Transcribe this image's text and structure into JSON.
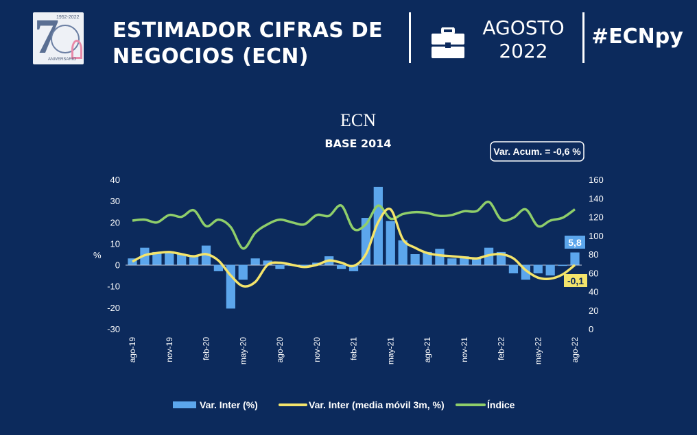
{
  "header": {
    "title_line1": "ESTIMADOR CIFRAS DE",
    "title_line2": "NEGOCIOS (ECN)",
    "month": "AGOSTO",
    "year": "2022",
    "hashtag": "#ECNpy",
    "logo_years": "1952-2022",
    "logo_caption": "ANIVERSARIO",
    "icons": [
      "anniversary-logo",
      "briefcase-icon"
    ]
  },
  "chart_data": {
    "type": "bar+line",
    "title": "ECN",
    "subtitle": "BASE 2014",
    "annotation": "Var. Acum. = -0,6 %",
    "ylabel_left": "%",
    "ylim_left": [
      -30,
      40
    ],
    "yticks_left": [
      "40",
      "30",
      "20",
      "10",
      "0",
      "-10",
      "-20",
      "-30"
    ],
    "ylim_right": [
      0,
      160
    ],
    "yticks_right": [
      "160",
      "140",
      "120",
      "100",
      "80",
      "60",
      "40",
      "20",
      "0"
    ],
    "x_tick_labels": [
      "ago-19",
      "nov-19",
      "feb-20",
      "may-20",
      "ago-20",
      "nov-20",
      "feb-21",
      "may-21",
      "ago-21",
      "nov-21",
      "feb-22",
      "may-22",
      "ago-22"
    ],
    "x": [
      "ago-19",
      "sep-19",
      "oct-19",
      "nov-19",
      "dic-19",
      "ene-20",
      "feb-20",
      "mar-20",
      "abr-20",
      "may-20",
      "jun-20",
      "jul-20",
      "ago-20",
      "sep-20",
      "oct-20",
      "nov-20",
      "dic-20",
      "ene-21",
      "feb-21",
      "mar-21",
      "abr-21",
      "may-21",
      "jun-21",
      "jul-21",
      "ago-21",
      "sep-21",
      "oct-21",
      "nov-21",
      "dic-21",
      "ene-22",
      "feb-22",
      "mar-22",
      "abr-22",
      "may-22",
      "jun-22",
      "jul-22",
      "ago-22"
    ],
    "series": [
      {
        "name": "Var. Inter (%)",
        "type": "bar",
        "axis": "left",
        "color": "#5ca6ec",
        "values": [
          3,
          8,
          6,
          6,
          5,
          4,
          9,
          -3,
          -20.5,
          -7,
          3,
          2,
          -2,
          -0.5,
          -0.5,
          1,
          4,
          -2,
          -3,
          22,
          36.5,
          20.5,
          11.5,
          5,
          6,
          7.5,
          3,
          4,
          3,
          8,
          6,
          -4,
          -7,
          -4,
          -5,
          -0.5,
          5.8
        ]
      },
      {
        "name": "Var. Inter (media móvil 3m, %)",
        "type": "line",
        "axis": "left",
        "color": "#f4e46b",
        "values": [
          1.5,
          4.5,
          5.5,
          6,
          5,
          4,
          5,
          2,
          -5,
          -10,
          -8,
          0,
          1,
          0,
          -1,
          0,
          2,
          1,
          -0.5,
          5,
          20,
          26,
          12,
          8,
          5.5,
          4.5,
          4,
          3.5,
          3,
          4.5,
          5,
          3,
          -2.5,
          -6,
          -6.5,
          -4.5,
          -0.1
        ]
      },
      {
        "name": "Índice",
        "type": "line",
        "axis": "right",
        "color": "#8fce6a",
        "values": [
          116,
          117,
          114,
          122,
          120,
          127,
          110,
          117,
          109,
          86,
          103,
          112,
          117,
          114,
          112,
          122,
          121,
          132,
          107,
          112,
          132,
          118,
          123,
          125,
          124,
          121,
          122,
          126,
          126,
          136,
          117,
          119,
          128,
          110,
          116,
          119,
          128
        ]
      }
    ],
    "data_labels": {
      "bar_last": "5,8",
      "line_last": "-0,1"
    },
    "legend": [
      "Var. Inter (%)",
      "Var. Inter (media móvil 3m, %)",
      "Índice"
    ],
    "legend_position": "bottom",
    "grid": false
  }
}
